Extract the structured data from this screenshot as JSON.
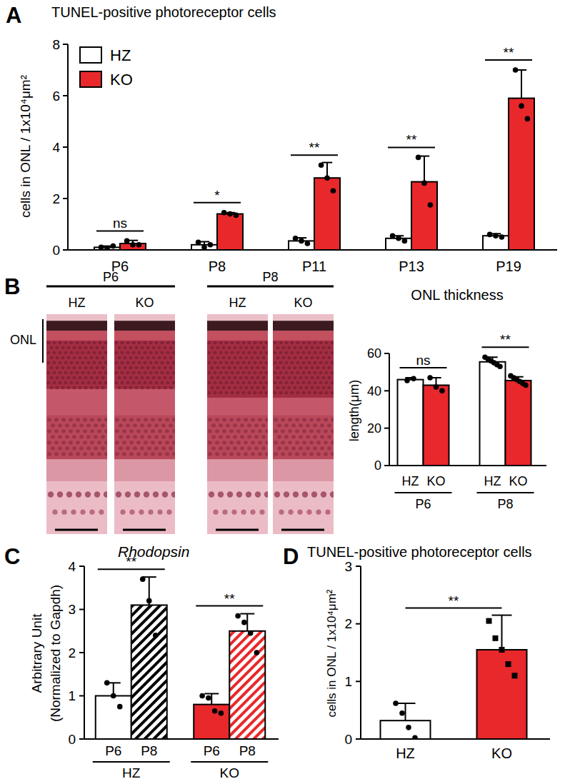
{
  "chart_data": [
    {
      "type": "bar",
      "title": "TUNEL-positive photoreceptor cells",
      "ylabel": "cells in ONL / 1x10⁴μm²",
      "categories": [
        "P6",
        "P8",
        "P11",
        "P13",
        "P19"
      ],
      "series": [
        {
          "name": "HZ",
          "color": "#ffffff",
          "marker": "circle",
          "values": [
            0.1,
            0.2,
            0.35,
            0.45,
            0.55
          ],
          "errors": [
            0.05,
            0.12,
            0.12,
            0.1,
            0.08
          ],
          "points": [
            [
              0.1,
              0.05,
              0.15
            ],
            [
              0.3,
              0.1,
              0.2
            ],
            [
              0.45,
              0.35,
              0.25
            ],
            [
              0.55,
              0.45,
              0.35
            ],
            [
              0.6,
              0.55,
              0.5
            ]
          ]
        },
        {
          "name": "KO",
          "color": "#e8282b",
          "marker": "circle",
          "values": [
            0.25,
            1.4,
            2.8,
            2.65,
            5.9
          ],
          "errors": [
            0.12,
            0.05,
            0.6,
            1.0,
            1.1
          ],
          "points": [
            [
              0.35,
              0.2,
              0.2
            ],
            [
              1.45,
              1.4,
              1.35
            ],
            [
              3.3,
              2.8,
              2.3
            ],
            [
              3.6,
              2.6,
              1.75
            ],
            [
              7.0,
              5.6,
              5.1
            ]
          ]
        }
      ],
      "annotations": [
        "ns",
        "*",
        "**",
        "**",
        "**"
      ],
      "ylim": [
        0,
        8
      ],
      "yticks": [
        0,
        2,
        4,
        6,
        8
      ],
      "legend": "top-left"
    },
    {
      "type": "bar",
      "title": "ONL thickness",
      "ylabel": "length(μm)",
      "categories": [
        "P6",
        "P8"
      ],
      "series": [
        {
          "name": "HZ",
          "color": "#ffffff",
          "marker": "circle",
          "values": [
            46,
            55.5
          ],
          "errors": [
            1,
            2.5
          ],
          "points": [
            [
              45.5,
              46.5
            ],
            [
              58,
              57,
              56,
              55,
              54,
              53
            ]
          ]
        },
        {
          "name": "KO",
          "color": "#e8282b",
          "marker": "circle",
          "values": [
            43,
            45.5
          ],
          "errors": [
            4,
            2
          ],
          "points": [
            [
              47,
              42,
              40
            ],
            [
              48,
              47,
              46,
              45,
              44,
              43
            ]
          ]
        }
      ],
      "annotations": [
        "ns",
        "**"
      ],
      "ylim": [
        0,
        60
      ],
      "yticks": [
        0,
        20,
        40,
        60
      ]
    },
    {
      "type": "bar",
      "title": "Rhodopsin",
      "ylabel": [
        "Arbitrary Unit",
        "(Normalized to Gapdh)"
      ],
      "categories": [
        "HZ",
        "KO"
      ],
      "series": [
        {
          "name": "P6",
          "colors": [
            "#ffffff",
            "#e8282b"
          ],
          "marker": "circle",
          "values": [
            1.0,
            0.8
          ],
          "errors": [
            0.3,
            0.25
          ],
          "points": [
            [
              1.3,
              1.0,
              0.75
            ],
            [
              1.0,
              0.95,
              0.65,
              0.6
            ]
          ]
        },
        {
          "name": "P8",
          "colors": [
            "#000000",
            "#e8282b"
          ],
          "line_style": "hatched",
          "marker": "circle",
          "values": [
            3.1,
            2.5
          ],
          "errors": [
            0.65,
            0.4
          ],
          "points": [
            [
              3.7,
              3.2,
              2.4
            ],
            [
              2.85,
              2.7,
              2.45,
              2.0
            ]
          ]
        }
      ],
      "annotations": [
        "**",
        "**"
      ],
      "ylim": [
        0,
        4
      ],
      "yticks": [
        0,
        1,
        2,
        3,
        4
      ]
    },
    {
      "type": "bar",
      "title": "TUNEL-positive photoreceptor cells",
      "ylabel": "cells in ONL / 1x10⁴μm²",
      "categories": [
        "HZ",
        "KO"
      ],
      "series": [
        {
          "color": "#ffffff",
          "marker": "circle",
          "values": [
            0.32,
            null
          ],
          "errors": [
            0.3,
            null
          ],
          "points": [
            [
              0.62,
              0.45,
              0.2,
              0.02
            ],
            []
          ]
        },
        {
          "color": "#e8282b",
          "marker": "square",
          "values": [
            null,
            1.55
          ],
          "errors": [
            null,
            0.6
          ],
          "points": [
            [],
            [
              2.05,
              1.75,
              1.55,
              1.3,
              1.1
            ]
          ]
        }
      ],
      "annotations": [
        "**"
      ],
      "ylim": [
        0,
        3
      ],
      "yticks": [
        0,
        1,
        2,
        3
      ]
    }
  ],
  "panel_labels": [
    "A",
    "B",
    "C",
    "D"
  ],
  "histology": {
    "layer_label": "ONL",
    "groups": [
      {
        "label": "P6",
        "samples": [
          "HZ",
          "KO"
        ]
      },
      {
        "label": "P8",
        "samples": [
          "HZ",
          "KO"
        ]
      }
    ]
  }
}
